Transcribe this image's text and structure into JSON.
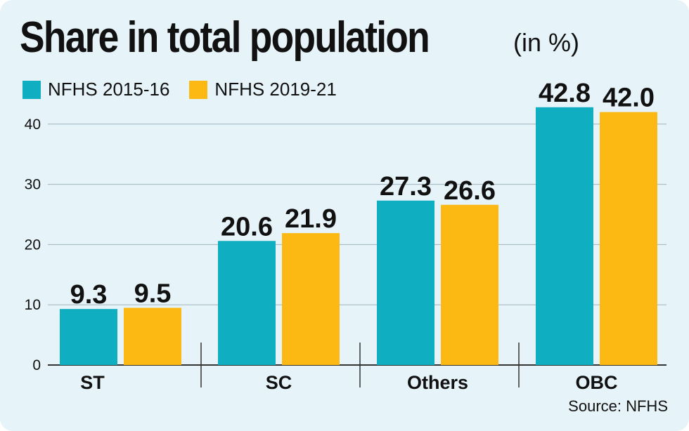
{
  "chart_data": {
    "type": "bar",
    "title": "Share in total population",
    "title_unit": "(in %)",
    "categories": [
      "ST",
      "SC",
      "Others",
      "OBC"
    ],
    "series": [
      {
        "name": "NFHS 2015-16",
        "color": "#10aec1",
        "values": [
          9.3,
          20.6,
          27.3,
          42.8
        ]
      },
      {
        "name": "NFHS 2019-21",
        "color": "#fdb913",
        "values": [
          9.5,
          21.9,
          26.6,
          42.0
        ]
      }
    ],
    "yticks": [
      0,
      10,
      20,
      30,
      40
    ],
    "ylim": [
      0,
      50
    ],
    "grid": true,
    "legend_position": "top-left",
    "source": "Source: NFHS"
  }
}
